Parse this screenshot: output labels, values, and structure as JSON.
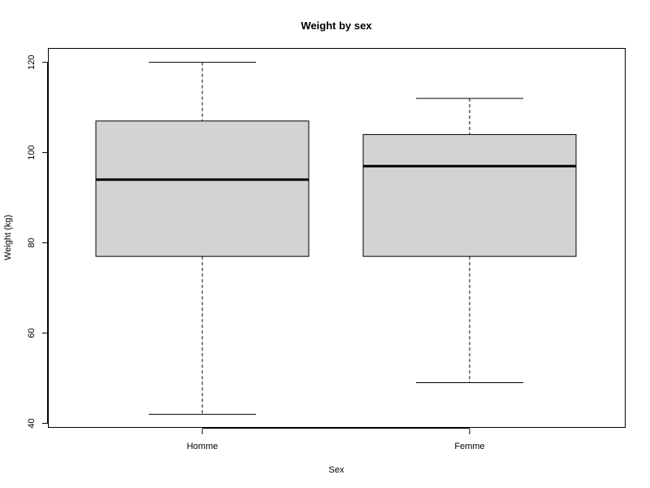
{
  "chart_data": {
    "type": "box",
    "title": "Weight by sex",
    "xlabel": "Sex",
    "ylabel": "Weight (kg)",
    "ylim": [
      39,
      123
    ],
    "yticks": [
      40,
      60,
      80,
      100,
      120
    ],
    "grid": false,
    "categories": [
      "Homme",
      "Femme"
    ],
    "boxes": [
      {
        "min": 42,
        "q1": 77,
        "median": 94,
        "q3": 107,
        "max": 120
      },
      {
        "min": 49,
        "q1": 77,
        "median": 97,
        "q3": 104,
        "max": 112
      }
    ],
    "colors": {
      "box_fill": "#d3d3d3",
      "stroke": "#000000"
    }
  }
}
